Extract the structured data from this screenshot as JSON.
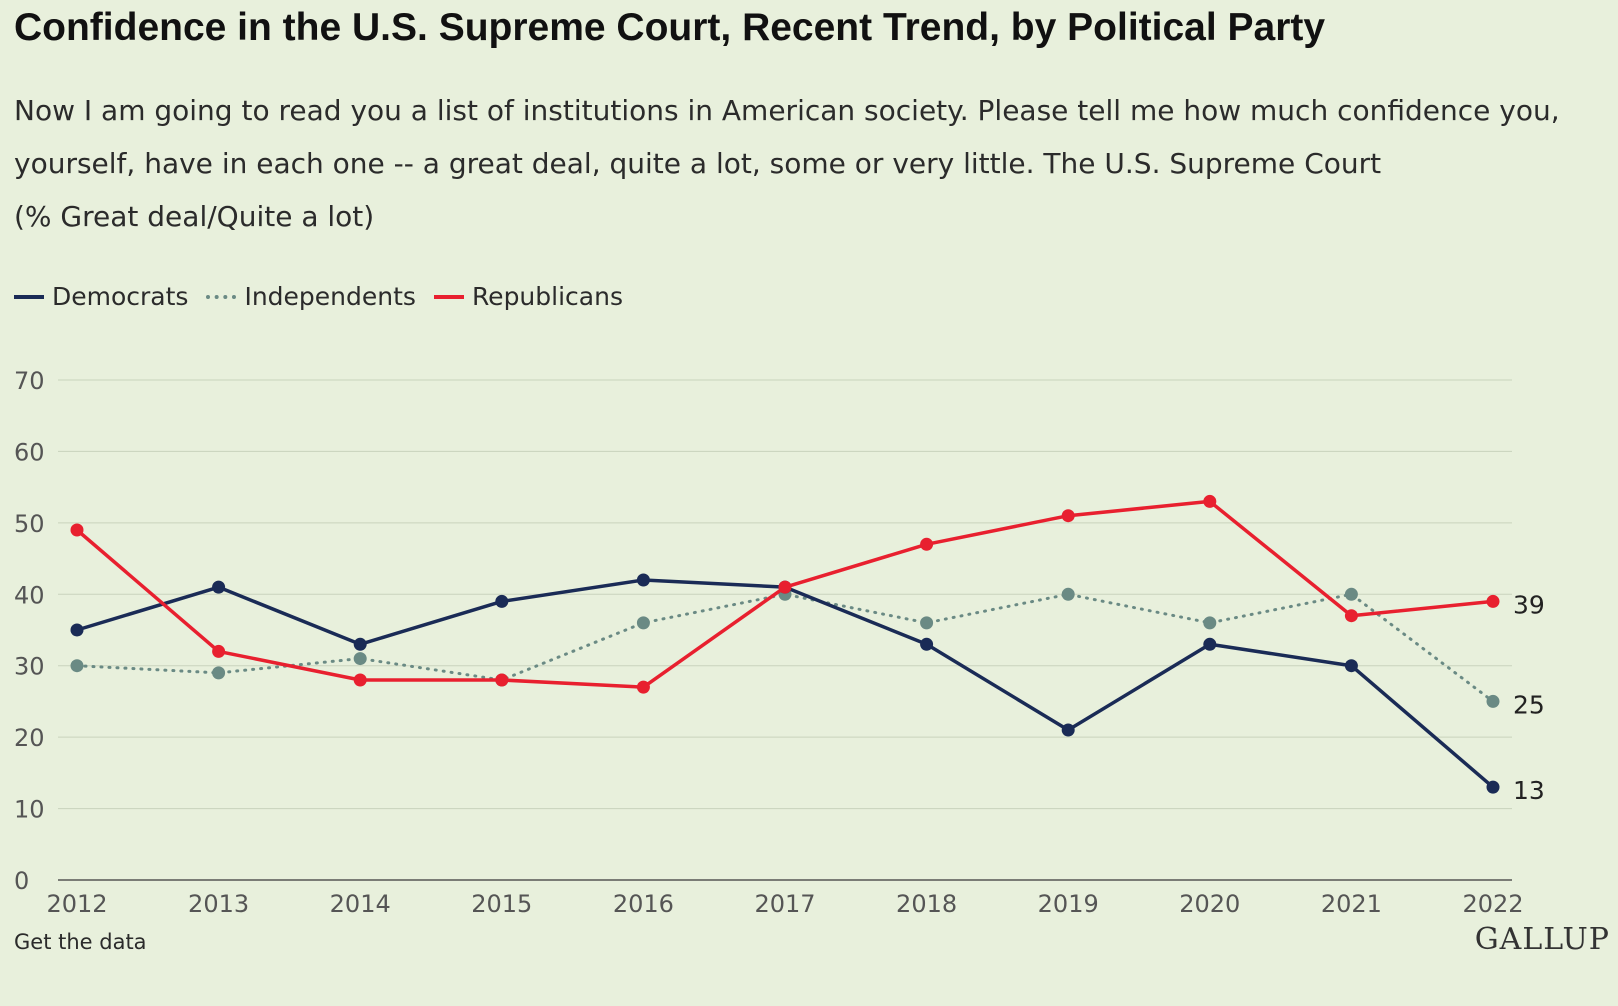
{
  "title": "Confidence in the U.S. Supreme Court, Recent Trend, by Political Party",
  "subtitle_lines": [
    "Now I am going to read you a list of institutions in American society. Please tell me how much confidence you,",
    "yourself, have in each one -- a great deal, quite a lot, some or very little. The U.S. Supreme Court",
    "(% Great deal/Quite a lot)"
  ],
  "footer": {
    "link": "Get the data",
    "brand": "GALLUP"
  },
  "chart_data": {
    "type": "line",
    "categories": [
      "2012",
      "2013",
      "2014",
      "2015",
      "2016",
      "2017",
      "2018",
      "2019",
      "2020",
      "2021",
      "2022"
    ],
    "ylim": [
      0,
      70
    ],
    "yticks": [
      0,
      10,
      20,
      30,
      40,
      50,
      60,
      70
    ],
    "grid": true,
    "legend_position": "top-left",
    "series": [
      {
        "name": "Democrats",
        "color": "#1a2b56",
        "style": "solid",
        "values": [
          35,
          41,
          33,
          39,
          42,
          41,
          33,
          21,
          33,
          30,
          13
        ],
        "end_label": "13"
      },
      {
        "name": "Independents",
        "color": "#6a8a84",
        "style": "dotted",
        "values": [
          30,
          29,
          31,
          28,
          36,
          40,
          36,
          40,
          36,
          40,
          25
        ],
        "end_label": "25"
      },
      {
        "name": "Republicans",
        "color": "#e8202f",
        "style": "solid",
        "values": [
          49,
          32,
          28,
          28,
          27,
          41,
          47,
          51,
          53,
          37,
          39
        ],
        "end_label": "39"
      }
    ]
  }
}
